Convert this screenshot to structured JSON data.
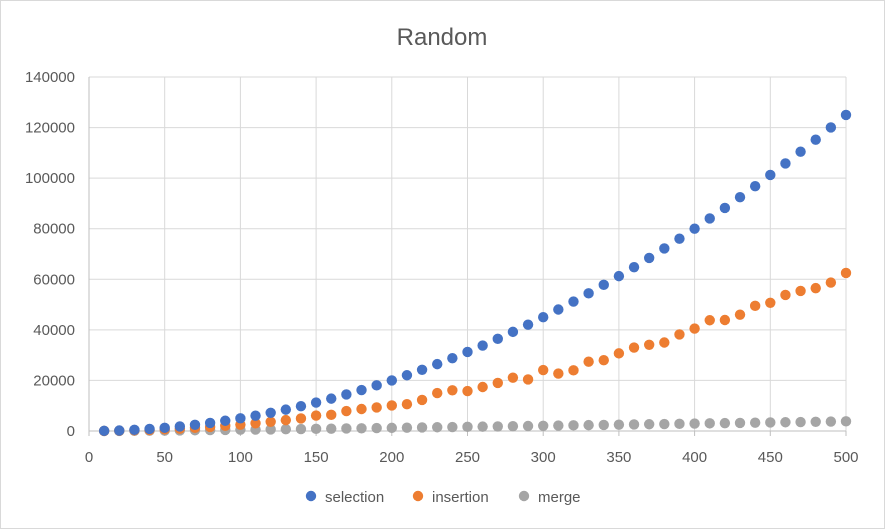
{
  "chart_data": {
    "type": "scatter",
    "title": "Random",
    "xlabel": "",
    "ylabel": "",
    "xlim": [
      0,
      500
    ],
    "ylim": [
      0,
      140000
    ],
    "x_ticks": [
      0,
      50,
      100,
      150,
      200,
      250,
      300,
      350,
      400,
      450,
      500
    ],
    "y_ticks": [
      0,
      20000,
      40000,
      60000,
      80000,
      100000,
      120000,
      140000
    ],
    "x_tick_labels": [
      "0",
      "50",
      "100",
      "150",
      "200",
      "250",
      "300",
      "350",
      "400",
      "450",
      "500"
    ],
    "y_tick_labels": [
      "0",
      "20000",
      "40000",
      "60000",
      "80000",
      "100000",
      "120000",
      "140000"
    ],
    "grid": {
      "x": true,
      "y": true
    },
    "legend": "bottom",
    "x": [
      10,
      20,
      30,
      40,
      50,
      60,
      70,
      80,
      90,
      100,
      110,
      120,
      130,
      140,
      150,
      160,
      170,
      180,
      190,
      200,
      210,
      220,
      230,
      240,
      250,
      260,
      270,
      280,
      290,
      300,
      310,
      320,
      330,
      340,
      350,
      360,
      370,
      380,
      390,
      400,
      410,
      420,
      430,
      440,
      450,
      460,
      470,
      480,
      490,
      500
    ],
    "series": [
      {
        "name": "selection",
        "color": "#4472C4",
        "values": [
          50,
          200,
          450,
          800,
          1250,
          1800,
          2450,
          3200,
          4050,
          5000,
          6050,
          7200,
          8450,
          9800,
          11250,
          12800,
          14450,
          16200,
          18050,
          20000,
          22050,
          24200,
          26450,
          28800,
          31250,
          33800,
          36450,
          39200,
          42050,
          45000,
          48050,
          51200,
          54450,
          57800,
          61250,
          64800,
          68450,
          72200,
          76050,
          80000,
          84050,
          88200,
          92450,
          96800,
          101250,
          105800,
          110450,
          115200,
          120050,
          125000
        ]
      },
      {
        "name": "insertion",
        "color": "#ED7D31",
        "values": [
          30,
          100,
          250,
          400,
          650,
          900,
          1250,
          1600,
          2050,
          2500,
          3050,
          3650,
          4300,
          4950,
          6100,
          6400,
          7900,
          8700,
          9300,
          10100,
          10600,
          12300,
          15000,
          16100,
          15800,
          17400,
          19000,
          21100,
          20400,
          24100,
          22700,
          24000,
          27400,
          28000,
          30700,
          33000,
          34100,
          35000,
          38200,
          40500,
          43800,
          43900,
          46000,
          49500,
          50700,
          53800,
          55400,
          56500,
          58700,
          62500
        ]
      },
      {
        "name": "merge",
        "color": "#A5A5A5",
        "values": [
          10,
          40,
          80,
          130,
          180,
          240,
          300,
          360,
          430,
          500,
          560,
          630,
          700,
          770,
          850,
          930,
          1000,
          1080,
          1160,
          1240,
          1320,
          1400,
          1480,
          1560,
          1650,
          1730,
          1810,
          1900,
          1980,
          2070,
          2150,
          2240,
          2320,
          2410,
          2500,
          2580,
          2670,
          2760,
          2840,
          2930,
          3020,
          3110,
          3200,
          3280,
          3370,
          3460,
          3550,
          3640,
          3730,
          3820
        ]
      }
    ]
  }
}
